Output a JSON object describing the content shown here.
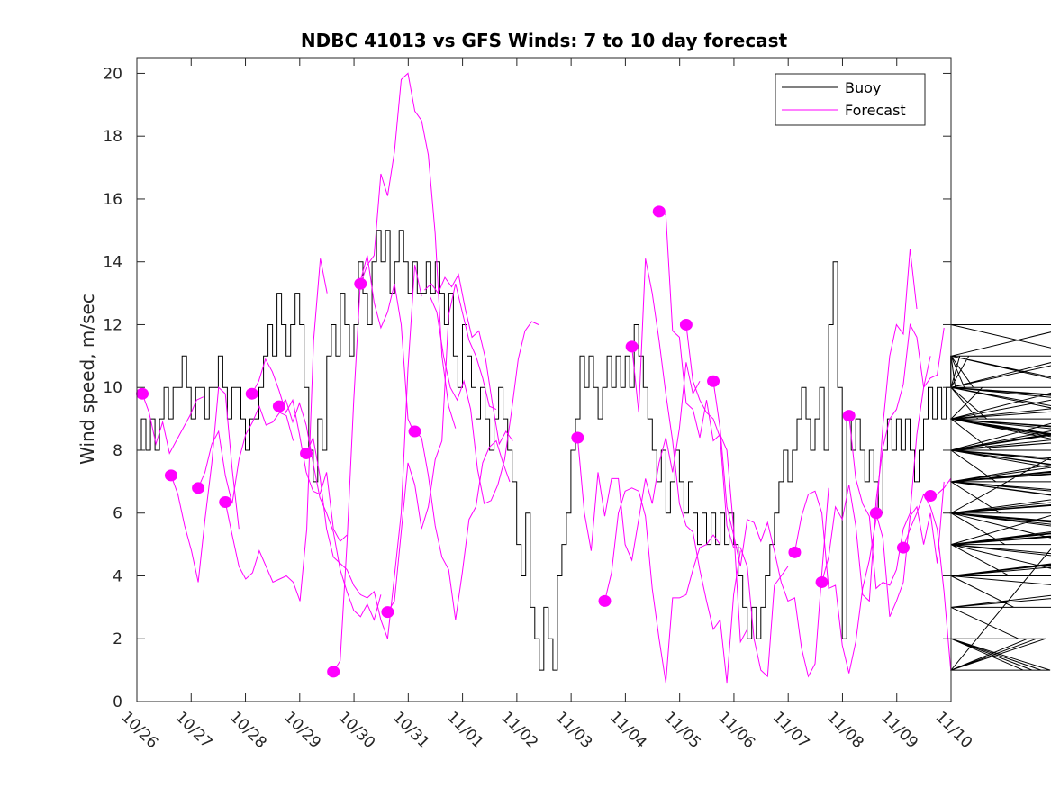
{
  "chart_data": {
    "type": "line",
    "title": "NDBC 41013 vs GFS Winds: 7 to 10 day forecast",
    "xlabel": "",
    "ylabel": "Wind speed, m/sec",
    "ylim": [
      0,
      20.5
    ],
    "xlim_days": [
      0,
      15
    ],
    "y_ticks": [
      0,
      2,
      4,
      6,
      8,
      10,
      12,
      14,
      16,
      18,
      20
    ],
    "x_tick_labels": [
      "10/26",
      "10/27",
      "10/28",
      "10/29",
      "10/30",
      "10/31",
      "11/01",
      "11/02",
      "11/03",
      "11/04",
      "11/05",
      "11/06",
      "11/07",
      "11/08",
      "11/09",
      "11/10"
    ],
    "grid": false,
    "legend": {
      "position": "top-right",
      "entries": [
        {
          "label": "Buoy",
          "color": "#000000"
        },
        {
          "label": "Forecast",
          "color": "#ff00ff"
        }
      ]
    },
    "colors": {
      "buoy": "#000000",
      "forecast": "#ff00ff",
      "marker": "#ff00ff"
    },
    "buoy": {
      "name": "Buoy",
      "step_days": 0.0833,
      "values": [
        8,
        9,
        8,
        9,
        8,
        9,
        10,
        9,
        10,
        10,
        11,
        10,
        9,
        10,
        10,
        9,
        10,
        10,
        11,
        10,
        9,
        10,
        10,
        9,
        8,
        9,
        9,
        10,
        11,
        12,
        11,
        13,
        12,
        11,
        12,
        13,
        12,
        10,
        8,
        7,
        9,
        8,
        11,
        12,
        11,
        13,
        12,
        11,
        12,
        14,
        13,
        12,
        14,
        15,
        14,
        15,
        13,
        14,
        15,
        14,
        13,
        14,
        13,
        13,
        14,
        13,
        14,
        13,
        12,
        13,
        11,
        10,
        12,
        11,
        10,
        9,
        10,
        9,
        8,
        9,
        10,
        9,
        8,
        7,
        5,
        4,
        6,
        3,
        2,
        1,
        3,
        2,
        1,
        4,
        5,
        6,
        8,
        9,
        11,
        10,
        11,
        10,
        9,
        10,
        11,
        10,
        11,
        10,
        11,
        10,
        12,
        11,
        10,
        9,
        8,
        7,
        8,
        6,
        7,
        8,
        7,
        6,
        7,
        6,
        5,
        6,
        5,
        6,
        5,
        6,
        5,
        6,
        5,
        4,
        3,
        2,
        3,
        2,
        3,
        4,
        5,
        6,
        7,
        8,
        7,
        8,
        9,
        10,
        9,
        8,
        9,
        10,
        8,
        12,
        14,
        10,
        2,
        9,
        8,
        9,
        8,
        7,
        8,
        7,
        6,
        8,
        9,
        8,
        9,
        8,
        9,
        8,
        7,
        8,
        9,
        10,
        9,
        10,
        9,
        10,
        11,
        10,
        11,
        10,
        11,
        10,
        9,
        10,
        9,
        8,
        7,
        6,
        5,
        4,
        3,
        2,
        1,
        2,
        1,
        2,
        1,
        2,
        1,
        5,
        6,
        8,
        9,
        10,
        11,
        12,
        11,
        10,
        11,
        10,
        9,
        8,
        9,
        10,
        9,
        8,
        7,
        8,
        9,
        8,
        9,
        8,
        9,
        8,
        7,
        8,
        7,
        6,
        7,
        6,
        5,
        6,
        4,
        5,
        3,
        4,
        5,
        6,
        5,
        4,
        5,
        6,
        7,
        8,
        9,
        10,
        9,
        8,
        7,
        8,
        7,
        6,
        5,
        4,
        3,
        4,
        5,
        6,
        5,
        6,
        7,
        8,
        10,
        9,
        8,
        7,
        6,
        5,
        6,
        7,
        8,
        9,
        8,
        9,
        10,
        9
      ]
    },
    "forecasts": [
      {
        "start_day": 0.1,
        "values": [
          9.8,
          9.2,
          8.2,
          8.9,
          7.9,
          8.3,
          8.7,
          9.1,
          9.6,
          9.7
        ]
      },
      {
        "start_day": 0.63,
        "values": [
          7.2,
          6.6,
          5.6,
          4.8,
          3.8,
          5.8,
          7.6,
          10.0,
          9.8,
          7.4,
          5.5
        ]
      },
      {
        "start_day": 1.13,
        "values": [
          6.8,
          7.3,
          8.2,
          8.6,
          7.2,
          6.3,
          7.7,
          8.5,
          8.9,
          9.4,
          8.8,
          8.9,
          9.2,
          9.1,
          8.3
        ]
      },
      {
        "start_day": 1.63,
        "values": [
          6.35,
          5.3,
          4.3,
          3.9,
          4.1,
          4.8,
          4.3,
          3.8,
          3.9,
          4.0,
          3.8,
          3.2,
          5.5,
          11.5,
          14.1,
          13.0
        ]
      },
      {
        "start_day": 2.12,
        "values": [
          9.8,
          10.2,
          10.9,
          10.5,
          9.9,
          9.2,
          9.6,
          8.5,
          7.3,
          6.7,
          6.6,
          7.3,
          5.5,
          5.1,
          5.3
        ]
      },
      {
        "start_day": 2.62,
        "values": [
          9.4,
          9.6,
          8.9,
          9.5,
          8.8,
          7.6,
          6.5,
          6.0,
          5.4,
          4.2,
          3.5,
          2.9,
          2.7,
          3.1,
          2.6,
          3.4
        ]
      },
      {
        "start_day": 3.12,
        "values": [
          7.9,
          8.4,
          7.2,
          5.5,
          4.6,
          4.4,
          4.2,
          3.7,
          3.4,
          3.3,
          3.5,
          2.6,
          2.0,
          4.0,
          6.0,
          10.6,
          13.9,
          12.9
        ]
      },
      {
        "start_day": 3.62,
        "values": [
          0.95,
          1.3,
          5.0,
          9.6,
          13.4,
          14.2,
          12.7,
          11.9,
          12.4,
          13.3,
          12.0,
          9.0,
          8.5
        ]
      },
      {
        "start_day": 4.12,
        "values": [
          13.3,
          13.9,
          14.2,
          16.8,
          16.1,
          17.5,
          19.8,
          20.0,
          18.8,
          18.5,
          17.4,
          14.9,
          11.0,
          9.4,
          8.7
        ]
      },
      {
        "start_day": 4.62,
        "values": [
          2.85,
          3.2,
          5.4,
          7.6,
          6.9,
          5.5,
          6.2,
          7.7,
          8.3,
          12.3,
          13.3,
          12.4,
          11.5,
          11.0,
          10.3,
          9.4,
          9.3
        ]
      },
      {
        "start_day": 5.12,
        "values": [
          8.6,
          8.4,
          7.2,
          5.6,
          4.6,
          4.2,
          2.6,
          4.1,
          5.8,
          6.2,
          7.6,
          8.1,
          8.3,
          7.6,
          7.0
        ]
      },
      {
        "start_day": 5.3,
        "values": [
          13.1,
          13.3,
          13.0,
          13.5,
          13.2,
          13.6,
          12.5,
          11.6,
          11.8,
          10.9,
          9.5,
          8.2,
          8.6,
          8.3
        ]
      },
      {
        "start_day": 5.4,
        "values": [
          12.9,
          12.4,
          11.0,
          10.0,
          9.6,
          10.2,
          9.3,
          7.4,
          6.3,
          6.4,
          6.9,
          7.7,
          9.2,
          10.9,
          11.8,
          12.1,
          12.0
        ]
      },
      {
        "start_day": 8.12,
        "values": [
          8.4,
          6.0,
          4.8,
          7.3,
          5.9,
          7.1,
          7.1,
          5.0,
          4.5,
          5.8,
          7.1,
          6.3,
          7.6,
          8.4,
          7.3,
          8.7,
          10.8,
          9.8,
          10.2
        ]
      },
      {
        "start_day": 8.62,
        "values": [
          3.2,
          4.1,
          6.0,
          6.7,
          6.8,
          6.7,
          5.9,
          3.6,
          2.0,
          0.6,
          3.3,
          3.3,
          3.4,
          4.2,
          4.9,
          5.0,
          5.3,
          5.0
        ]
      },
      {
        "start_day": 9.12,
        "values": [
          11.3,
          9.2,
          14.1,
          13.0,
          11.5,
          9.8,
          8.3,
          6.3,
          5.6,
          5.4,
          4.2,
          3.2,
          2.3,
          2.6,
          0.6,
          3.4,
          4.8
        ]
      },
      {
        "start_day": 9.62,
        "values": [
          15.6,
          15.5,
          11.8,
          11.6,
          9.5,
          9.3,
          8.4,
          9.6,
          8.3,
          8.5,
          8.0,
          5.5,
          1.9,
          2.3
        ]
      },
      {
        "start_day": 10.12,
        "values": [
          12.0,
          10.2,
          9.6,
          9.2,
          9.0,
          8.4,
          5.6,
          4.9,
          4.9,
          4.3,
          2.0,
          1.0,
          0.8,
          3.7,
          4.0,
          4.3
        ]
      },
      {
        "start_day": 10.62,
        "values": [
          10.2,
          8.7,
          6.2,
          5.3,
          4.3,
          5.8,
          5.7,
          5.1,
          5.7,
          4.8,
          3.8,
          3.2,
          3.3,
          1.7,
          0.8,
          1.2,
          4.1,
          6.8
        ]
      },
      {
        "start_day": 12.12,
        "values": [
          4.75,
          5.9,
          6.6,
          6.7,
          6.0,
          3.6,
          3.7,
          1.8,
          0.9,
          1.9,
          3.6,
          4.5,
          5.8,
          8.8,
          11.0,
          12.0,
          11.7,
          14.4,
          12.5
        ]
      },
      {
        "start_day": 12.62,
        "values": [
          3.8,
          4.6,
          6.2,
          5.8,
          6.9,
          5.6,
          3.4,
          3.2,
          6.4,
          8.1,
          9.0,
          9.3,
          10.1,
          12.0,
          11.6,
          10.0,
          11.0
        ]
      },
      {
        "start_day": 13.12,
        "values": [
          9.1,
          7.1,
          6.3,
          5.9,
          3.6,
          3.8,
          3.7,
          4.2,
          5.5,
          6.0,
          8.5,
          10.0,
          10.3,
          10.4,
          11.9
        ]
      },
      {
        "start_day": 13.62,
        "values": [
          6.0,
          5.2,
          2.7,
          3.2,
          3.8,
          5.9,
          6.2,
          5.0,
          6.0,
          4.4,
          7.0
        ]
      },
      {
        "start_day": 14.12,
        "values": [
          4.9,
          5.5,
          6.0,
          6.6,
          6.2,
          5.5,
          3.5,
          1.0
        ]
      },
      {
        "start_day": 14.62,
        "values": [
          6.55,
          6.6,
          6.8,
          7.1,
          6.8
        ]
      }
    ]
  }
}
